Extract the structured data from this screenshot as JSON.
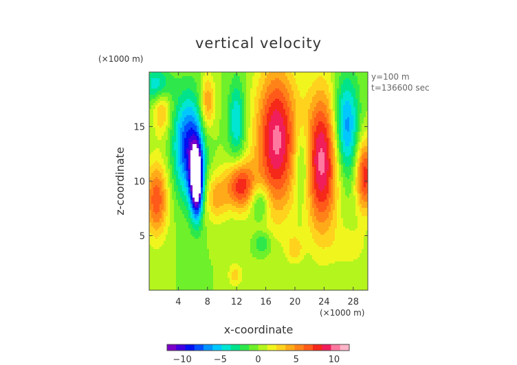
{
  "chart_data": {
    "type": "heatmap",
    "title": "vertical velocity",
    "xlabel": "x-coordinate",
    "ylabel": "z-coordinate",
    "x_unit_label": "(×1000 m)",
    "y_unit_label": "(×1000 m)",
    "annotations": [
      "y=100 m",
      "t=136600 sec"
    ],
    "xlim": [
      0,
      30
    ],
    "ylim": [
      0,
      20
    ],
    "x_ticks": [
      4,
      8,
      12,
      16,
      20,
      24,
      28
    ],
    "x_tick_labels": [
      "4",
      "8",
      "12",
      "16",
      "20",
      "24",
      "28"
    ],
    "y_ticks": [
      5,
      10,
      15
    ],
    "y_tick_labels": [
      "5",
      "10",
      "15"
    ],
    "colorbar": {
      "range": [
        -12,
        12
      ],
      "ticks": [
        -10,
        -5,
        0,
        5,
        10
      ],
      "tick_labels": [
        "−10",
        "−5",
        "0",
        "5",
        "10"
      ],
      "colors": [
        "#7b00c8",
        "#4000e0",
        "#0010f0",
        "#0050ff",
        "#0095ff",
        "#00c8ff",
        "#00e6d2",
        "#00e38a",
        "#2ee84b",
        "#6ef02a",
        "#b4f51e",
        "#f0f51e",
        "#ffd21e",
        "#ffaa19",
        "#ff8219",
        "#ff5a19",
        "#f52819",
        "#f01e5a",
        "#ff78a0",
        "#ffb4c8"
      ]
    },
    "field_features": [
      {
        "kind": "updraft",
        "x": 1.0,
        "z": 8.3,
        "amplitude": 7
      },
      {
        "kind": "updraft",
        "x": 1.7,
        "z": 16.5,
        "amplitude": 4
      },
      {
        "kind": "downdraft",
        "x": 1.1,
        "z": 18.8,
        "amplitude": -5
      },
      {
        "kind": "downdraft",
        "x": 5.4,
        "z": 13.2,
        "amplitude": -9
      },
      {
        "kind": "downdraft",
        "x": 6.5,
        "z": 10.0,
        "amplitude": -15
      },
      {
        "kind": "updraft",
        "x": 8.0,
        "z": 17.2,
        "amplitude": 5
      },
      {
        "kind": "updraft",
        "x": 9.2,
        "z": 8.5,
        "amplitude": 4
      },
      {
        "kind": "updraft",
        "x": 12.5,
        "z": 9.6,
        "amplitude": 8
      },
      {
        "kind": "downdraft",
        "x": 12.0,
        "z": 15.5,
        "amplitude": -5
      },
      {
        "kind": "updraft",
        "x": 17.5,
        "z": 13.8,
        "amplitude": 10
      },
      {
        "kind": "downdraft",
        "x": 15.2,
        "z": 8.0,
        "amplitude": -4
      },
      {
        "kind": "downdraft",
        "x": 15.6,
        "z": 4.3,
        "amplitude": -3
      },
      {
        "kind": "downdraft",
        "x": 21.0,
        "z": 11.5,
        "amplitude": -4
      },
      {
        "kind": "updraft",
        "x": 23.7,
        "z": 11.8,
        "amplitude": 10
      },
      {
        "kind": "downdraft",
        "x": 27.0,
        "z": 15.0,
        "amplitude": -7
      },
      {
        "kind": "updraft",
        "x": 29.6,
        "z": 10.5,
        "amplitude": 8
      },
      {
        "kind": "updraft",
        "x": 20.0,
        "z": 3.8,
        "amplitude": 3
      },
      {
        "kind": "updraft",
        "x": 11.8,
        "z": 1.4,
        "amplitude": 3
      },
      {
        "kind": "updraft",
        "x": 27.5,
        "z": 4.0,
        "amplitude": 2
      }
    ],
    "grid": false
  }
}
